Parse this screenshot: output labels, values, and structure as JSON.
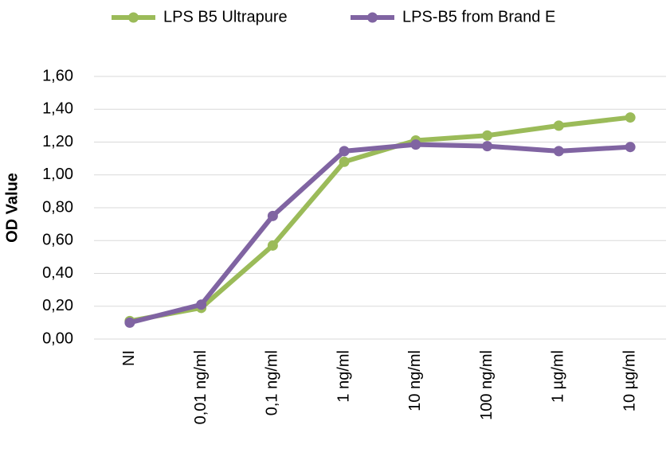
{
  "chart_data": {
    "type": "line",
    "y_label": "OD Value",
    "categories": [
      "NI",
      "0,01 ng/ml",
      "0,1 ng/ml",
      "1 ng/ml",
      "10 ng/ml",
      "100 ng/ml",
      "1 µg/ml",
      "10 µg/ml"
    ],
    "series": [
      {
        "name": "LPS B5 Ultrapure",
        "color": "#9bbb59",
        "values": [
          0.11,
          0.19,
          0.57,
          1.08,
          1.21,
          1.24,
          1.3,
          1.35
        ]
      },
      {
        "name": "LPS-B5 from Brand E",
        "color": "#8064a2",
        "values": [
          0.1,
          0.21,
          0.75,
          1.145,
          1.185,
          1.175,
          1.145,
          1.17
        ]
      }
    ],
    "ylim": [
      0,
      1.6
    ],
    "yticks": [
      {
        "value": 0,
        "label": "0,00"
      },
      {
        "value": 0.2,
        "label": "0,20"
      },
      {
        "value": 0.4,
        "label": "0,40"
      },
      {
        "value": 0.6,
        "label": "0,60"
      },
      {
        "value": 0.8,
        "label": "0,80"
      },
      {
        "value": 1.0,
        "label": "1,00"
      },
      {
        "value": 1.2,
        "label": "1,20"
      },
      {
        "value": 1.4,
        "label": "1,40"
      },
      {
        "value": 1.6,
        "label": "1,60"
      }
    ],
    "grid": true,
    "legend": "top"
  }
}
